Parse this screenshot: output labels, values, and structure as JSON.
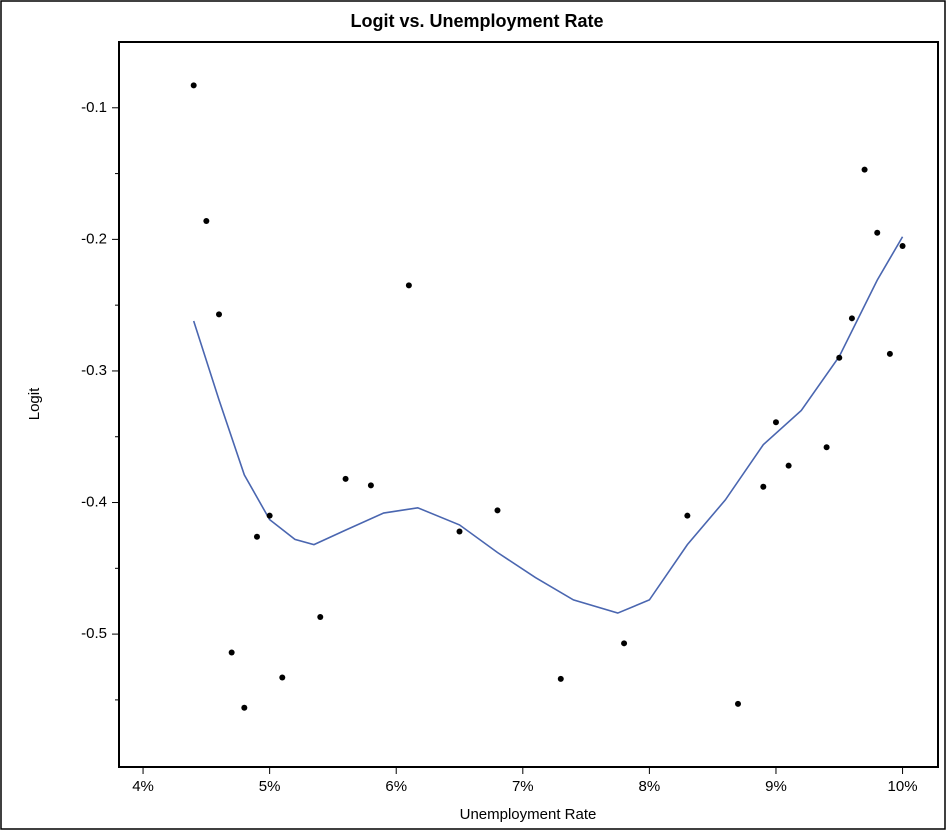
{
  "chart_data": {
    "type": "scatter",
    "title": "Logit vs. Unemployment Rate",
    "x_label": "Unemployment Rate",
    "y_label": "Logit",
    "xlim": [
      3.81,
      10.28
    ],
    "ylim": [
      -0.601,
      -0.05
    ],
    "xticks": [
      {
        "value": 4,
        "label": "4%"
      },
      {
        "value": 5,
        "label": "5%"
      },
      {
        "value": 6,
        "label": "6%"
      },
      {
        "value": 7,
        "label": "7%"
      },
      {
        "value": 8,
        "label": "8%"
      },
      {
        "value": 9,
        "label": "9%"
      },
      {
        "value": 10,
        "label": "10%"
      }
    ],
    "yticks": [
      -0.1,
      -0.2,
      -0.3,
      -0.4,
      -0.5
    ],
    "yminor_ticks": [
      -0.15,
      -0.25,
      -0.35,
      -0.45,
      -0.55
    ],
    "points": {
      "color": "#000000",
      "x": [
        4.4,
        4.5,
        4.6,
        4.7,
        4.8,
        4.9,
        5.0,
        5.1,
        5.4,
        5.6,
        5.8,
        6.1,
        6.5,
        6.8,
        7.3,
        7.8,
        8.3,
        8.7,
        8.9,
        9.0,
        9.1,
        9.4,
        9.5,
        9.6,
        9.7,
        9.8,
        9.9,
        10.0
      ],
      "y": [
        -0.083,
        -0.186,
        -0.257,
        -0.514,
        -0.556,
        -0.426,
        -0.41,
        -0.533,
        -0.487,
        -0.382,
        -0.387,
        -0.235,
        -0.422,
        -0.406,
        -0.534,
        -0.507,
        -0.41,
        -0.553,
        -0.388,
        -0.339,
        -0.372,
        -0.358,
        -0.29,
        -0.26,
        -0.147,
        -0.195,
        -0.287,
        -0.205
      ]
    },
    "curve": {
      "color": "#4a66b0",
      "x": [
        4.4,
        4.6,
        4.8,
        5.0,
        5.2,
        5.35,
        5.6,
        5.9,
        6.17,
        6.5,
        6.8,
        7.1,
        7.4,
        7.75,
        8.0,
        8.3,
        8.6,
        8.9,
        9.2,
        9.5,
        9.8,
        10.0
      ],
      "y": [
        -0.262,
        -0.322,
        -0.379,
        -0.413,
        -0.428,
        -0.432,
        -0.421,
        -0.408,
        -0.404,
        -0.417,
        -0.438,
        -0.457,
        -0.474,
        -0.484,
        -0.474,
        -0.432,
        -0.398,
        -0.356,
        -0.33,
        -0.289,
        -0.231,
        -0.198
      ]
    }
  }
}
